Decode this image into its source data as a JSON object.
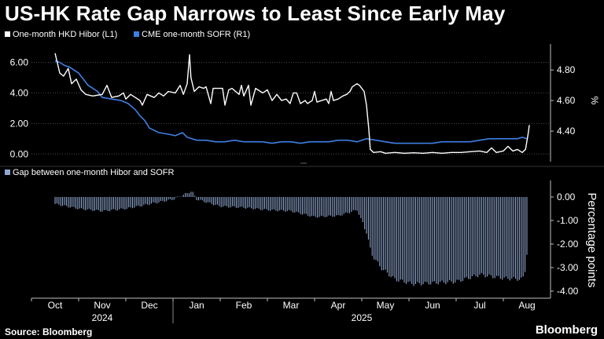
{
  "header": {
    "title": "US-HK Rate Gap Narrows to Least Since Early May"
  },
  "footer": {
    "source": "Source: Bloomberg",
    "brand": "Bloomberg"
  },
  "colors": {
    "background": "#000000",
    "hibor": "#ffffff",
    "sofr": "#3f7fe3",
    "gap": "#8fa6cf",
    "grid": "#4a4a4a",
    "axis": "#bfbfbf",
    "text": "#ffffff"
  },
  "chart_data": [
    {
      "type": "line",
      "title": "US-HK Rate Gap Narrows to Least Since Early May",
      "legend_position": "top-left",
      "x_ticks": [
        "Oct",
        "Nov",
        "Dec",
        "Jan",
        "Feb",
        "Mar",
        "Apr",
        "May",
        "Jun",
        "Jul",
        "Aug"
      ],
      "x_year_labels": [
        "2024",
        "2025"
      ],
      "left_axis": {
        "ylim": [
          -0.5,
          7.0
        ],
        "ticks": [
          "0.00",
          "2.00",
          "4.00",
          "6.00"
        ]
      },
      "right_axis": {
        "ylim": [
          4.2,
          4.95
        ],
        "ticks": [
          "4.40",
          "4.60",
          "4.80"
        ],
        "unit": "%"
      },
      "series": [
        {
          "name": "One-month HKD Hibor (L1)",
          "axis": "left",
          "points": [
            [
              0.0,
              6.6
            ],
            [
              0.1,
              5.3
            ],
            [
              0.18,
              5.1
            ],
            [
              0.28,
              5.6
            ],
            [
              0.35,
              4.6
            ],
            [
              0.45,
              4.9
            ],
            [
              0.55,
              4.2
            ],
            [
              0.65,
              3.9
            ],
            [
              0.8,
              3.8
            ],
            [
              1.0,
              3.9
            ],
            [
              1.1,
              4.5
            ],
            [
              1.2,
              3.7
            ],
            [
              1.35,
              3.8
            ],
            [
              1.45,
              4.0
            ],
            [
              1.5,
              3.6
            ],
            [
              1.6,
              3.9
            ],
            [
              1.7,
              3.7
            ],
            [
              1.8,
              3.5
            ],
            [
              1.85,
              3.2
            ],
            [
              1.95,
              3.9
            ],
            [
              2.1,
              3.7
            ],
            [
              2.2,
              4.0
            ],
            [
              2.3,
              3.8
            ],
            [
              2.4,
              4.1
            ],
            [
              2.55,
              4.0
            ],
            [
              2.65,
              4.5
            ],
            [
              2.72,
              3.9
            ],
            [
              2.8,
              4.6
            ],
            [
              2.85,
              6.5
            ],
            [
              2.88,
              5.0
            ],
            [
              2.95,
              4.1
            ],
            [
              3.05,
              4.4
            ],
            [
              3.15,
              4.3
            ],
            [
              3.2,
              4.4
            ],
            [
              3.3,
              3.3
            ],
            [
              3.35,
              4.3
            ],
            [
              3.45,
              4.3
            ],
            [
              3.55,
              4.3
            ],
            [
              3.6,
              3.2
            ],
            [
              3.68,
              4.2
            ],
            [
              3.75,
              4.3
            ],
            [
              3.9,
              3.9
            ],
            [
              3.95,
              4.5
            ],
            [
              4.0,
              3.8
            ],
            [
              4.1,
              4.5
            ],
            [
              4.15,
              3.2
            ],
            [
              4.25,
              4.3
            ],
            [
              4.4,
              4.0
            ],
            [
              4.5,
              4.2
            ],
            [
              4.6,
              3.5
            ],
            [
              4.7,
              3.9
            ],
            [
              4.8,
              3.5
            ],
            [
              4.9,
              3.6
            ],
            [
              4.98,
              3.3
            ],
            [
              5.05,
              4.0
            ],
            [
              5.12,
              4.0
            ],
            [
              5.2,
              3.3
            ],
            [
              5.3,
              3.5
            ],
            [
              5.35,
              3.3
            ],
            [
              5.45,
              3.5
            ],
            [
              5.5,
              4.1
            ],
            [
              5.55,
              3.4
            ],
            [
              5.65,
              3.5
            ],
            [
              5.75,
              3.6
            ],
            [
              5.8,
              3.3
            ],
            [
              5.85,
              4.1
            ],
            [
              5.9,
              3.5
            ],
            [
              6.0,
              3.6
            ],
            [
              6.1,
              3.8
            ],
            [
              6.18,
              3.9
            ],
            [
              6.25,
              4.1
            ],
            [
              6.3,
              4.4
            ],
            [
              6.4,
              4.6
            ],
            [
              6.45,
              4.5
            ],
            [
              6.5,
              4.3
            ],
            [
              6.55,
              4.1
            ],
            [
              6.6,
              3.2
            ],
            [
              6.65,
              1.6
            ],
            [
              6.68,
              0.3
            ],
            [
              6.75,
              0.1
            ],
            [
              6.9,
              0.15
            ],
            [
              7.0,
              0.05
            ],
            [
              7.2,
              0.1
            ],
            [
              7.4,
              0.05
            ],
            [
              7.6,
              0.08
            ],
            [
              7.8,
              0.05
            ],
            [
              8.0,
              0.1
            ],
            [
              8.2,
              0.05
            ],
            [
              8.4,
              0.1
            ],
            [
              8.6,
              0.1
            ],
            [
              8.8,
              0.15
            ],
            [
              9.0,
              0.2
            ],
            [
              9.15,
              0.1
            ],
            [
              9.25,
              0.4
            ],
            [
              9.35,
              0.1
            ],
            [
              9.5,
              0.2
            ],
            [
              9.6,
              0.5
            ],
            [
              9.7,
              0.2
            ],
            [
              9.8,
              0.3
            ],
            [
              9.9,
              0.1
            ],
            [
              9.97,
              0.3
            ],
            [
              10.03,
              1.4
            ],
            [
              10.05,
              1.9
            ]
          ]
        },
        {
          "name": "CME one-month SOFR (R1)",
          "axis": "right",
          "points": [
            [
              0.0,
              4.86
            ],
            [
              0.1,
              4.85
            ],
            [
              0.2,
              4.83
            ],
            [
              0.3,
              4.82
            ],
            [
              0.4,
              4.8
            ],
            [
              0.5,
              4.78
            ],
            [
              0.6,
              4.74
            ],
            [
              0.7,
              4.7
            ],
            [
              0.8,
              4.68
            ],
            [
              0.9,
              4.66
            ],
            [
              1.0,
              4.62
            ],
            [
              1.2,
              4.61
            ],
            [
              1.4,
              4.6
            ],
            [
              1.55,
              4.58
            ],
            [
              1.7,
              4.54
            ],
            [
              1.8,
              4.5
            ],
            [
              1.9,
              4.47
            ],
            [
              2.0,
              4.42
            ],
            [
              2.2,
              4.39
            ],
            [
              2.4,
              4.38
            ],
            [
              2.55,
              4.37
            ],
            [
              2.7,
              4.39
            ],
            [
              2.8,
              4.36
            ],
            [
              3.0,
              4.34
            ],
            [
              3.2,
              4.34
            ],
            [
              3.4,
              4.33
            ],
            [
              3.6,
              4.33
            ],
            [
              3.8,
              4.34
            ],
            [
              4.0,
              4.33
            ],
            [
              4.2,
              4.33
            ],
            [
              4.4,
              4.33
            ],
            [
              4.6,
              4.32
            ],
            [
              4.8,
              4.33
            ],
            [
              5.0,
              4.33
            ],
            [
              5.2,
              4.32
            ],
            [
              5.4,
              4.33
            ],
            [
              5.6,
              4.33
            ],
            [
              5.8,
              4.33
            ],
            [
              6.0,
              4.34
            ],
            [
              6.2,
              4.34
            ],
            [
              6.4,
              4.33
            ],
            [
              6.6,
              4.35
            ],
            [
              6.8,
              4.34
            ],
            [
              7.0,
              4.33
            ],
            [
              7.2,
              4.32
            ],
            [
              7.4,
              4.32
            ],
            [
              7.6,
              4.32
            ],
            [
              7.8,
              4.32
            ],
            [
              8.0,
              4.32
            ],
            [
              8.2,
              4.33
            ],
            [
              8.4,
              4.33
            ],
            [
              8.6,
              4.33
            ],
            [
              8.8,
              4.33
            ],
            [
              9.0,
              4.34
            ],
            [
              9.2,
              4.35
            ],
            [
              9.4,
              4.35
            ],
            [
              9.6,
              4.35
            ],
            [
              9.8,
              4.35
            ],
            [
              9.9,
              4.36
            ],
            [
              10.0,
              4.35
            ]
          ]
        }
      ]
    },
    {
      "type": "bar",
      "title": "Gap between one-month Hibor and SOFR",
      "ylim": [
        -4.3,
        0.7
      ],
      "yticks": [
        "0.00",
        "-1.00",
        "-2.00",
        "-3.00",
        "-4.00"
      ],
      "ylabel": "Percentage points",
      "series": [
        {
          "name": "Gap between one-month Hibor and SOFR",
          "profile": [
            [
              0.0,
              -0.3
            ],
            [
              0.5,
              -0.5
            ],
            [
              1.0,
              -0.6
            ],
            [
              1.5,
              -0.5
            ],
            [
              2.0,
              -0.3
            ],
            [
              2.5,
              -0.1
            ],
            [
              2.9,
              0.25
            ],
            [
              3.0,
              -0.1
            ],
            [
              3.5,
              -0.4
            ],
            [
              4.0,
              -0.45
            ],
            [
              4.5,
              -0.55
            ],
            [
              5.0,
              -0.6
            ],
            [
              5.5,
              -0.85
            ],
            [
              6.0,
              -0.8
            ],
            [
              6.4,
              -0.55
            ],
            [
              6.6,
              -1.5
            ],
            [
              6.7,
              -2.4
            ],
            [
              6.9,
              -3.0
            ],
            [
              7.2,
              -3.5
            ],
            [
              7.6,
              -3.7
            ],
            [
              8.0,
              -3.65
            ],
            [
              8.5,
              -3.6
            ],
            [
              9.0,
              -3.3
            ],
            [
              9.5,
              -3.45
            ],
            [
              9.9,
              -3.5
            ],
            [
              9.95,
              -3.3
            ],
            [
              10.0,
              -2.4
            ]
          ]
        }
      ]
    }
  ]
}
